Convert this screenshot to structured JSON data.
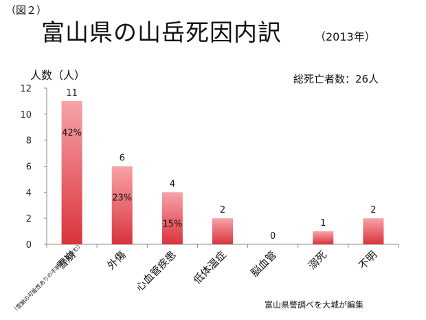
{
  "figure_label": "（図２）",
  "title": "富山県の山岳死因内訳",
  "year": "（2013年）",
  "total": "総死亡者数：26人",
  "source": "富山県警調べを大城が編集",
  "note": "（雪崩の可能性ありの不明4名を含む）",
  "colors": {
    "bar_top": "#f7a3a8",
    "bar_bottom": "#d9333b",
    "axis": "#888888"
  },
  "chart_data": {
    "type": "bar",
    "title": "富山県の山岳死因内訳",
    "ylabel": "人数（人）",
    "xlabel": "",
    "ylim": [
      0,
      12
    ],
    "yticks": [
      0,
      2,
      4,
      6,
      8,
      10,
      12
    ],
    "grid": false,
    "categories": [
      "雪崩",
      "外傷",
      "心血管疾患",
      "低体温症",
      "脳血管",
      "溺死",
      "不明"
    ],
    "values": [
      11,
      6,
      4,
      2,
      0,
      1,
      2
    ],
    "value_labels": [
      "11",
      "6",
      "4",
      "2",
      "0",
      "1",
      "2"
    ],
    "percent_labels": [
      "42%",
      "23%",
      "15%",
      "",
      "",
      "",
      ""
    ]
  }
}
